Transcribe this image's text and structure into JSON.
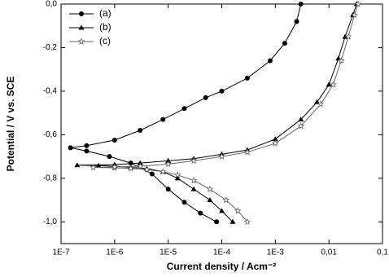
{
  "chart_data": {
    "type": "line",
    "x_label": "Current density / Acm⁻²",
    "y_label": "Potential / V vs. SCE",
    "xscale": "log",
    "xlim": [
      1e-07,
      0.1
    ],
    "ylim": [
      -1.1,
      0.0
    ],
    "xticks": [
      {
        "value": 1e-07,
        "label": "1E-7"
      },
      {
        "value": 1e-06,
        "label": "1E-6"
      },
      {
        "value": 1e-05,
        "label": "1E-5"
      },
      {
        "value": 0.0001,
        "label": "1E-4"
      },
      {
        "value": 0.001,
        "label": "1E-3"
      },
      {
        "value": 0.01,
        "label": "0,01"
      },
      {
        "value": 0.1,
        "label": "0,1"
      }
    ],
    "yticks": [
      {
        "value": 0.0,
        "label": "0,0"
      },
      {
        "value": -0.2,
        "label": "-0,2"
      },
      {
        "value": -0.4,
        "label": "-0,4"
      },
      {
        "value": -0.6,
        "label": "-0,6"
      },
      {
        "value": -0.8,
        "label": "-0,8"
      },
      {
        "value": -1.0,
        "label": "-1,0"
      }
    ],
    "legend": "upper left",
    "series": [
      {
        "name": "(a)",
        "color": "#000000",
        "marker": "circle",
        "x": [
          8e-05,
          4e-05,
          2e-05,
          1e-05,
          5e-06,
          2e-06,
          8e-07,
          3e-07,
          1.5e-07,
          3e-07,
          1e-06,
          3e-06,
          8e-06,
          2e-05,
          5e-05,
          0.0001,
          0.0003,
          0.0008,
          0.0015,
          0.0025,
          0.003
        ],
        "values": [
          -1.0,
          -0.96,
          -0.91,
          -0.85,
          -0.78,
          -0.73,
          -0.7,
          -0.675,
          -0.66,
          -0.65,
          -0.625,
          -0.58,
          -0.53,
          -0.48,
          -0.43,
          -0.4,
          -0.34,
          -0.26,
          -0.18,
          -0.08,
          0.0
        ]
      },
      {
        "name": "(b)",
        "color": "#000000",
        "marker": "triangle",
        "x": [
          0.00016,
          0.0001,
          6e-05,
          3e-05,
          1.5e-05,
          8e-06,
          4e-06,
          2e-06,
          1e-06,
          5e-07,
          2e-07,
          1e-06,
          3e-06,
          1e-05,
          3e-05,
          0.0001,
          0.0003,
          0.001,
          0.003,
          0.006,
          0.01,
          0.015,
          0.02,
          0.028,
          0.033
        ],
        "values": [
          -1.0,
          -0.95,
          -0.9,
          -0.85,
          -0.8,
          -0.77,
          -0.755,
          -0.75,
          -0.745,
          -0.742,
          -0.74,
          -0.737,
          -0.73,
          -0.72,
          -0.71,
          -0.69,
          -0.67,
          -0.62,
          -0.53,
          -0.45,
          -0.37,
          -0.25,
          -0.15,
          -0.05,
          0.0
        ]
      },
      {
        "name": "(c)",
        "color": "#666666",
        "marker": "star",
        "x": [
          0.0003,
          0.0002,
          0.00012,
          6e-05,
          3e-05,
          1.5e-05,
          8e-06,
          4e-06,
          2e-06,
          1e-06,
          4e-07,
          1e-06,
          3e-06,
          1e-05,
          3e-05,
          0.0001,
          0.0003,
          0.001,
          0.003,
          0.007,
          0.012,
          0.017,
          0.023,
          0.03,
          0.035
        ],
        "values": [
          -1.0,
          -0.95,
          -0.9,
          -0.85,
          -0.81,
          -0.785,
          -0.77,
          -0.76,
          -0.755,
          -0.752,
          -0.75,
          -0.748,
          -0.745,
          -0.735,
          -0.72,
          -0.7,
          -0.68,
          -0.64,
          -0.56,
          -0.46,
          -0.37,
          -0.26,
          -0.15,
          -0.05,
          0.0
        ]
      }
    ]
  }
}
